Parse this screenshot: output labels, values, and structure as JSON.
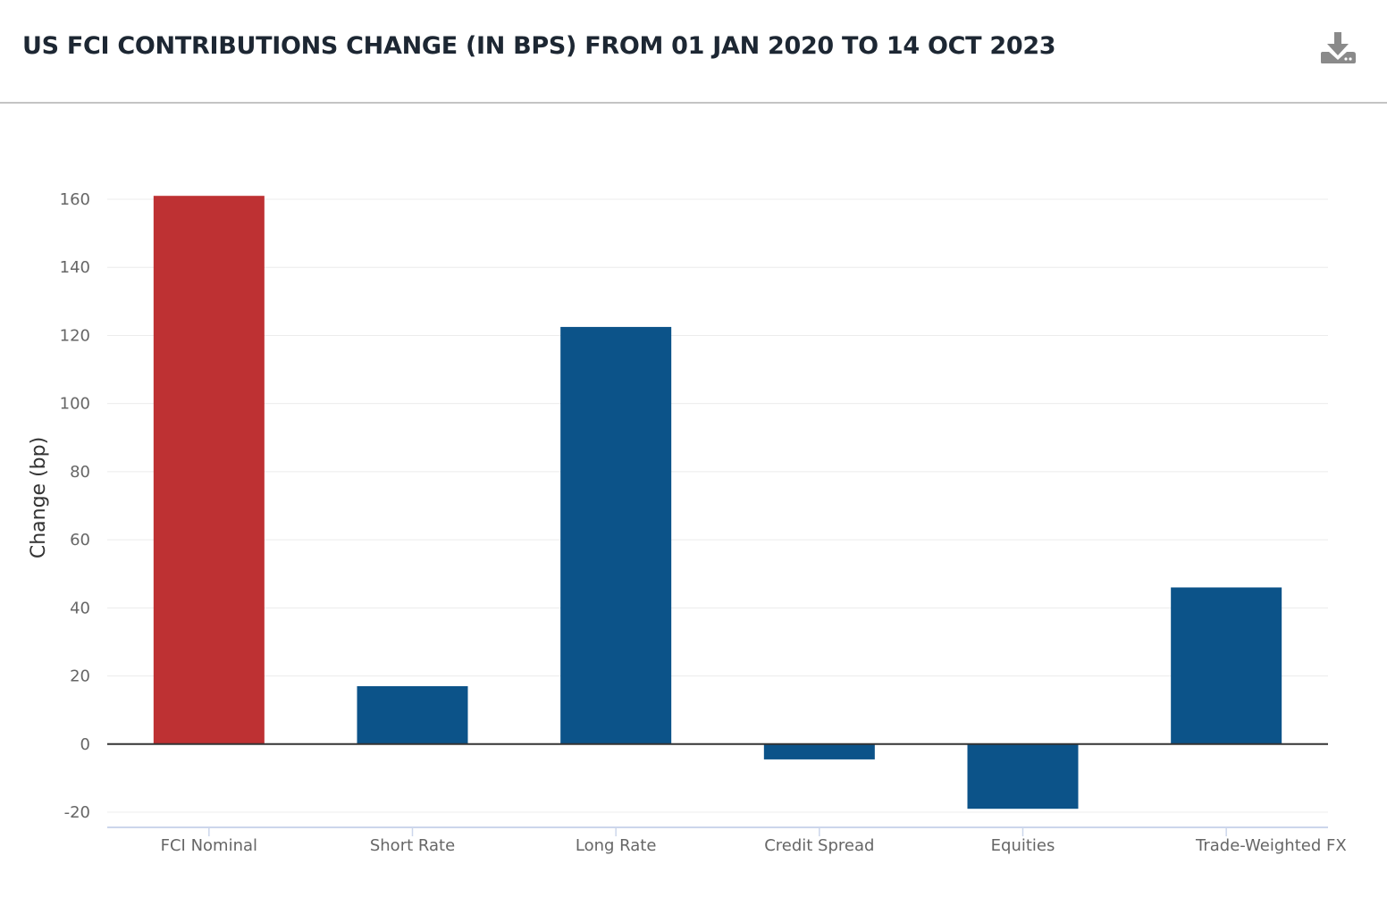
{
  "header": {
    "title": "US FCI CONTRIBUTIONS CHANGE (IN BPS) FROM 01 JAN 2020 TO 14 OCT 2023",
    "download_icon": "download-icon"
  },
  "colors": {
    "highlight": "#be3133",
    "primary": "#0c5389",
    "grid": "#ececec",
    "zero_line": "#333333",
    "x_axis": "#ccd6eb"
  },
  "chart_data": {
    "type": "bar",
    "title": "US FCI CONTRIBUTIONS CHANGE (IN BPS) FROM 01 JAN 2020 TO 14 OCT 2023",
    "categories": [
      "FCI Nominal",
      "Short Rate",
      "Long Rate",
      "Credit Spread",
      "Equities",
      "Trade-Weighted FX"
    ],
    "values": [
      161,
      17,
      122.5,
      -4.5,
      -19,
      46
    ],
    "bar_colors": [
      "#be3133",
      "#0c5389",
      "#0c5389",
      "#0c5389",
      "#0c5389",
      "#0c5389"
    ],
    "xlabel": "",
    "ylabel": "Change (bp)",
    "ylim": [
      -20,
      160
    ],
    "yticks": [
      "160",
      "140",
      "120",
      "100",
      "80",
      "60",
      "40",
      "20",
      "0",
      "-20"
    ],
    "grid": true,
    "legend": "none"
  }
}
